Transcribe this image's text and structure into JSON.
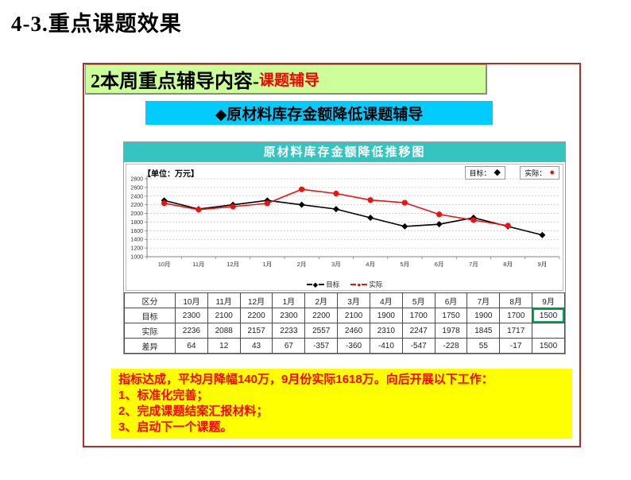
{
  "page_title": "4-3.重点课题效果",
  "section_header": {
    "text": "2本周重点辅导内容-",
    "highlight": "课题辅导"
  },
  "topic_bar": {
    "text": "◆原材料库存金额降低课题辅导"
  },
  "chart": {
    "title": "原材料库存金额降低推移图",
    "unit_label": "【单位：万元】",
    "legend_target_label": "目标：",
    "legend_actual_label": "实际：",
    "bottom_legend_target": "目标",
    "bottom_legend_actual": "实际"
  },
  "chart_data": {
    "type": "line",
    "title": "原材料库存金额降低推移图",
    "ylabel": "万元",
    "categories": [
      "10月",
      "11月",
      "12月",
      "1月",
      "2月",
      "3月",
      "4月",
      "5月",
      "6月",
      "7月",
      "8月",
      "9月"
    ],
    "series": [
      {
        "name": "目标",
        "marker": "diamond",
        "color": "#000000",
        "values": [
          2300,
          2100,
          2200,
          2300,
          2200,
          2100,
          1900,
          1700,
          1750,
          1900,
          1700,
          1500
        ]
      },
      {
        "name": "实际",
        "marker": "circle",
        "color": "#ee1111",
        "values": [
          2236,
          2088,
          2157,
          2233,
          2557,
          2460,
          2310,
          2247,
          1978,
          1845,
          1717,
          null
        ]
      }
    ],
    "ylim": [
      1000,
      2800
    ],
    "ytick_step": 200,
    "grid": "horizontal-dashed",
    "legend_position": "top-right"
  },
  "table": {
    "corner_label": "区分",
    "columns": [
      "10月",
      "11月",
      "12月",
      "1月",
      "2月",
      "3月",
      "4月",
      "5月",
      "6月",
      "7月",
      "8月",
      "9月"
    ],
    "rows": [
      {
        "label": "目标",
        "values": [
          "2300",
          "2100",
          "2200",
          "2300",
          "2200",
          "2100",
          "1900",
          "1700",
          "1750",
          "1900",
          "1700",
          "1500"
        ]
      },
      {
        "label": "实际",
        "values": [
          "2236",
          "2088",
          "2157",
          "2233",
          "2557",
          "2460",
          "2310",
          "2247",
          "1978",
          "1845",
          "1717",
          ""
        ]
      },
      {
        "label": "差异",
        "values": [
          "64",
          "12",
          "43",
          "67",
          "-357",
          "-360",
          "-410",
          "-547",
          "-228",
          "55",
          "-17",
          "1500"
        ]
      }
    ],
    "highlight_cell": {
      "row_label": "目标",
      "column": "9月"
    }
  },
  "note_box": {
    "lines": [
      "指标达成，平均月降幅140万，9月份实际1618万。向后开展以下工作：",
      "1、标准化完善；",
      "2、完成课题结案汇报材料；",
      "3、启动下一个课题。"
    ]
  },
  "colors": {
    "outer_border_red": "#a93226",
    "section_header_green": "#ccff99",
    "topic_bar_cyan": "#00ccff",
    "chart_title_teal": "#35c4bf",
    "note_yellow": "#ffff00",
    "note_text_red": "#ff0000",
    "target_series": "#000000",
    "actual_series": "#ee1111",
    "highlight_cell_green": "#00a650"
  }
}
